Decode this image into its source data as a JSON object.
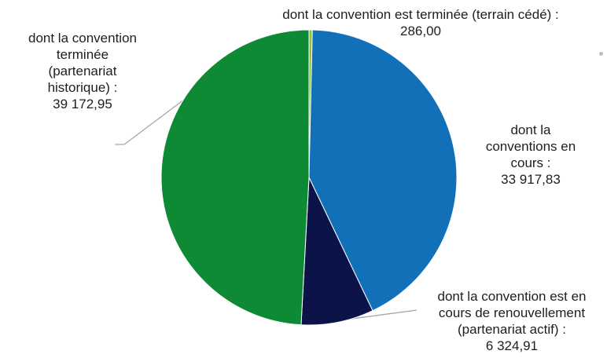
{
  "chart_data": {
    "type": "pie",
    "slices": [
      {
        "lines": [
          "dont la convention est terminée (terrain cédé) :",
          "286,00"
        ],
        "value": 286.0,
        "color": "#8dc63f"
      },
      {
        "lines": [
          "dont la",
          "conventions en",
          "cours :",
          "33 917,83"
        ],
        "value": 33917.83,
        "color": "#1170b8"
      },
      {
        "lines": [
          "dont la convention est en",
          "cours de renouvellement",
          "(partenariat actif) :",
          "6 324,91"
        ],
        "value": 6324.91,
        "color": "#0b1348"
      },
      {
        "lines": [
          "dont la convention",
          "terminée",
          "(partenariat",
          "historique) :",
          "39 172,95"
        ],
        "value": 39172.95,
        "color": "#0e8a35"
      }
    ]
  }
}
